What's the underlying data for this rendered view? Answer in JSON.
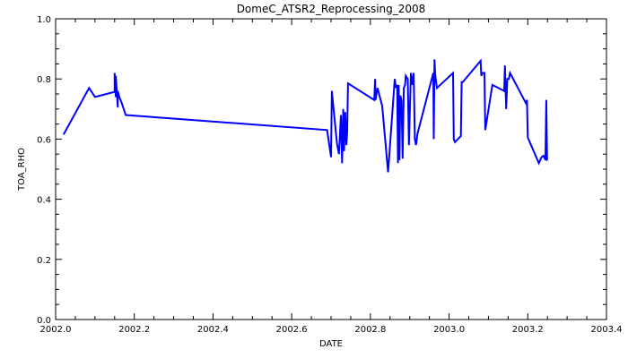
{
  "chart_data": {
    "type": "line",
    "title": "DomeC_ATSR2_Reprocessing_2008",
    "xlabel": "DATE",
    "ylabel": "TOA_RHO",
    "xlim": [
      2002.0,
      2003.4
    ],
    "ylim": [
      0.0,
      1.0
    ],
    "x_ticks": [
      "2002.0",
      "2002.2",
      "2002.4",
      "2002.6",
      "2002.8",
      "2003.0",
      "2003.2",
      "2003.4"
    ],
    "y_ticks": [
      "0.0",
      "0.2",
      "0.4",
      "0.6",
      "0.8",
      "1.0"
    ],
    "grid": false,
    "line_color": "#0000ff",
    "series": [
      {
        "x": [
          2002.02,
          2002.085,
          2002.1,
          2002.15,
          2002.15,
          2002.153,
          2002.153,
          2002.158,
          2002.158,
          2002.162,
          2002.168,
          2002.178,
          2002.69,
          2002.7,
          2002.702,
          2002.705,
          2002.715,
          2002.72,
          2002.725,
          2002.728,
          2002.731,
          2002.733,
          2002.736,
          2002.739,
          2002.741,
          2002.743,
          2002.81,
          2002.812,
          2002.813,
          2002.818,
          2002.83,
          2002.845,
          2002.862,
          2002.865,
          2002.868,
          2002.87,
          2002.872,
          2002.874,
          2002.876,
          2002.879,
          2002.882,
          2002.885,
          2002.888,
          2002.89,
          2002.895,
          2002.898,
          2002.903,
          2002.907,
          2002.91,
          2002.913,
          2002.916,
          2002.92,
          2002.96,
          2002.961,
          2002.963,
          2002.965,
          2002.969,
          2003.01,
          2003.012,
          2003.015,
          2003.03,
          2003.032,
          2003.035,
          2003.08,
          2003.082,
          2003.085,
          2003.09,
          2003.092,
          2003.11,
          2003.14,
          2003.142,
          2003.145,
          2003.148,
          2003.152,
          2003.155,
          2003.195,
          2003.198,
          2003.2,
          2003.228,
          2003.235,
          2003.24,
          2003.245,
          2003.247,
          2003.249,
          2003.25
        ],
        "y": [
          0.615,
          0.77,
          0.74,
          0.757,
          0.82,
          0.74,
          0.81,
          0.705,
          0.76,
          0.74,
          0.72,
          0.68,
          0.63,
          0.54,
          0.76,
          0.72,
          0.585,
          0.55,
          0.68,
          0.52,
          0.7,
          0.56,
          0.69,
          0.58,
          0.625,
          0.785,
          0.73,
          0.8,
          0.73,
          0.77,
          0.71,
          0.49,
          0.8,
          0.77,
          0.78,
          0.52,
          0.78,
          0.53,
          0.745,
          0.73,
          0.535,
          0.77,
          0.78,
          0.81,
          0.8,
          0.58,
          0.82,
          0.78,
          0.82,
          0.6,
          0.58,
          0.62,
          0.82,
          0.6,
          0.865,
          0.81,
          0.77,
          0.82,
          0.6,
          0.59,
          0.61,
          0.79,
          0.79,
          0.86,
          0.81,
          0.82,
          0.82,
          0.63,
          0.78,
          0.76,
          0.845,
          0.7,
          0.8,
          0.8,
          0.82,
          0.72,
          0.73,
          0.605,
          0.52,
          0.54,
          0.545,
          0.53,
          0.73,
          0.53,
          0.53
        ]
      }
    ]
  }
}
